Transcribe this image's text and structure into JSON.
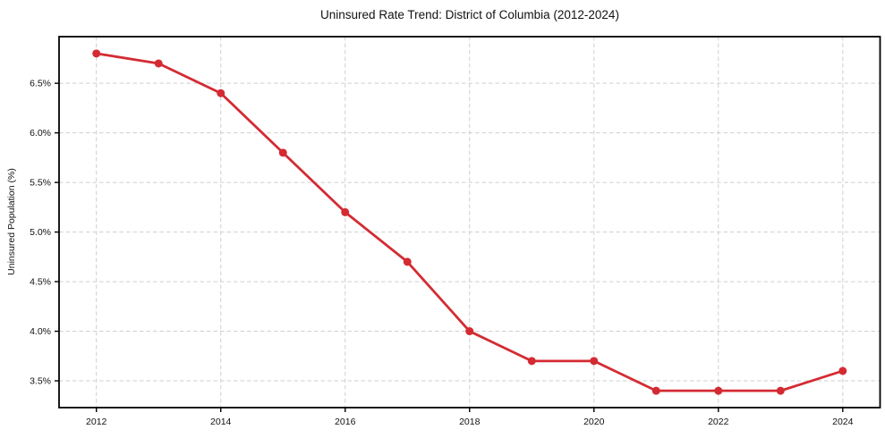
{
  "chart_data": {
    "type": "line",
    "title": "Uninsured Rate Trend: District of Columbia (2012-2024)",
    "xlabel": "",
    "ylabel": "Uninsured Population (%)",
    "x": [
      2012,
      2013,
      2014,
      2015,
      2016,
      2017,
      2018,
      2019,
      2020,
      2021,
      2022,
      2023,
      2024
    ],
    "values": [
      6.8,
      6.7,
      6.4,
      5.8,
      5.2,
      4.7,
      4.0,
      3.7,
      3.7,
      3.4,
      3.4,
      3.4,
      3.6
    ],
    "xticks": [
      2012,
      2014,
      2016,
      2018,
      2020,
      2022,
      2024
    ],
    "xtick_labels": [
      "2012",
      "2014",
      "2016",
      "2018",
      "2020",
      "2022",
      "2024"
    ],
    "yticks": [
      3.5,
      4.0,
      4.5,
      5.0,
      5.5,
      6.0,
      6.5
    ],
    "ytick_labels": [
      "3.5%",
      "4.0%",
      "4.5%",
      "5.0%",
      "5.5%",
      "6.0%",
      "6.5%"
    ],
    "xlim": [
      2011.4,
      2024.6
    ],
    "ylim": [
      3.23,
      6.97
    ],
    "grid": true,
    "legend": false,
    "line_color": "#d42b33",
    "marker": "circle"
  }
}
